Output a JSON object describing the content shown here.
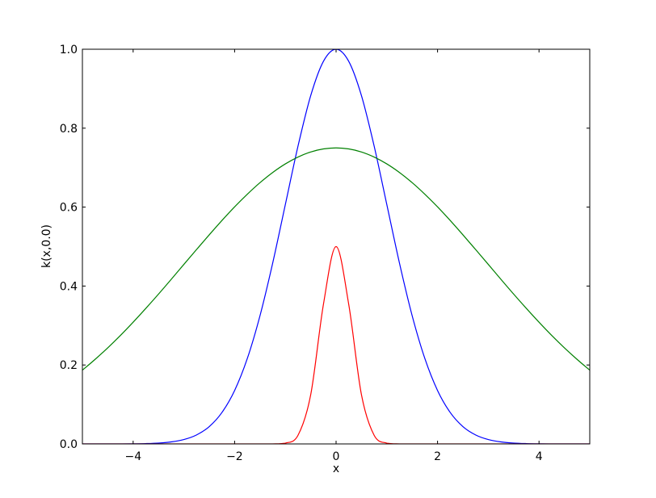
{
  "chart_data": {
    "type": "line",
    "title": "",
    "xlabel": "x",
    "ylabel": "k(x,0.0)",
    "xlim": [
      -5,
      5
    ],
    "ylim": [
      0,
      1
    ],
    "grid": false,
    "xticks": [
      "−4",
      "−2",
      "0",
      "2",
      "4"
    ],
    "xtick_values": [
      -4,
      -2,
      0,
      2,
      4
    ],
    "yticks": [
      "0.0",
      "0.2",
      "0.4",
      "0.6",
      "0.8",
      "1.0"
    ],
    "ytick_values": [
      0,
      0.2,
      0.4,
      0.6,
      0.8,
      1.0
    ],
    "x": [
      -5,
      -4.75,
      -4.5,
      -4.25,
      -4,
      -3.75,
      -3.5,
      -3.25,
      -3,
      -2.75,
      -2.5,
      -2.25,
      -2,
      -1.75,
      -1.5,
      -1.25,
      -1,
      -0.75,
      -0.5,
      -0.25,
      0,
      0.25,
      0.5,
      0.75,
      1,
      1.25,
      1.5,
      1.75,
      2,
      2.25,
      2.5,
      2.75,
      3,
      3.25,
      3.5,
      3.75,
      4,
      4.25,
      4.5,
      4.75,
      5
    ],
    "series": [
      {
        "color": "#0000ff",
        "values": [
          0,
          0,
          0,
          0.0001,
          0.0003,
          0.0009,
          0.0022,
          0.0051,
          0.0111,
          0.0228,
          0.0439,
          0.0796,
          0.1353,
          0.2163,
          0.3247,
          0.4578,
          0.6065,
          0.7548,
          0.8825,
          0.9692,
          1,
          0.9692,
          0.8825,
          0.7548,
          0.6065,
          0.4578,
          0.3247,
          0.2163,
          0.1353,
          0.0796,
          0.0439,
          0.0228,
          0.0111,
          0.0051,
          0.0022,
          0.0009,
          0.0003,
          0.0001,
          0,
          0,
          0
        ]
      },
      {
        "color": "#008000",
        "values": [
          0.1868,
          0.2142,
          0.2435,
          0.2749,
          0.3084,
          0.3434,
          0.3796,
          0.4169,
          0.4549,
          0.4925,
          0.5298,
          0.5661,
          0.6006,
          0.6326,
          0.6619,
          0.6877,
          0.7095,
          0.7269,
          0.7397,
          0.7474,
          0.75,
          0.7474,
          0.7397,
          0.7269,
          0.7095,
          0.6877,
          0.6619,
          0.6326,
          0.6006,
          0.5661,
          0.5298,
          0.4925,
          0.4549,
          0.4169,
          0.3796,
          0.3434,
          0.3084,
          0.2749,
          0.2435,
          0.2142,
          0.1868
        ]
      },
      {
        "color": "#ff0000",
        "values": [
          0,
          0,
          0,
          0,
          0,
          0,
          0,
          0,
          0,
          0,
          0,
          0,
          0,
          0,
          0,
          0.0001,
          0.0019,
          0.022,
          0.1247,
          0.353,
          0.5,
          0.353,
          0.1247,
          0.022,
          0.0019,
          0.0001,
          0,
          0,
          0,
          0,
          0,
          0,
          0,
          0,
          0,
          0,
          0,
          0,
          0,
          0,
          0
        ]
      }
    ]
  }
}
